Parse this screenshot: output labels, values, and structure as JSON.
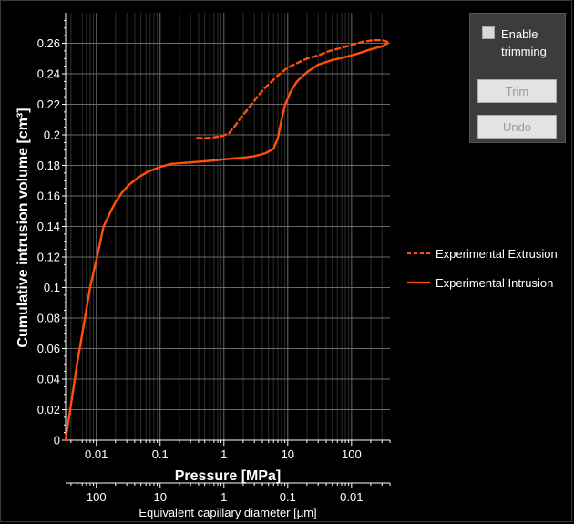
{
  "chart_data": {
    "type": "line",
    "xlabel": "Pressure [MPa]",
    "ylabel": "Cumulative intrusion volume [cm³]",
    "xscale": "log",
    "xlim": [
      0.0033,
      400
    ],
    "ylim": [
      0,
      0.28
    ],
    "x_ticks": [
      0.01,
      0.1,
      1,
      10,
      100
    ],
    "x_tick_labels": [
      "0.01",
      "0.1",
      "1",
      "10",
      "100"
    ],
    "y_ticks": [
      0,
      0.02,
      0.04,
      0.06,
      0.08,
      0.1,
      0.12,
      0.14,
      0.16,
      0.18,
      0.2,
      0.22,
      0.24,
      0.26
    ],
    "y_tick_labels": [
      "0",
      "0.02",
      "0.04",
      "0.06",
      "0.08",
      "0.1",
      "0.12",
      "0.14",
      "0.16",
      "0.18",
      "0.2",
      "0.22",
      "0.24",
      "0.26"
    ],
    "grid": true,
    "secondary_x_axis": {
      "label": "Equivalent capillary diameter [µm]",
      "ticks_at_pressure": [
        0.01,
        0.1,
        1,
        10,
        100
      ],
      "tick_labels": [
        "100",
        "10",
        "1",
        "0.1",
        "0.01"
      ]
    },
    "legend_position": "right",
    "series": [
      {
        "name": "Experimental Extrusion",
        "style": "dashed",
        "color": "#ff4f0a",
        "x": [
          0.38,
          0.55,
          0.9,
          1.2,
          1.5,
          1.9,
          2.5,
          3.2,
          4.2,
          5.6,
          7.5,
          10,
          14,
          20,
          30,
          45,
          70,
          100,
          150,
          220,
          300,
          360
        ],
        "y": [
          0.198,
          0.198,
          0.199,
          0.201,
          0.206,
          0.212,
          0.218,
          0.224,
          0.23,
          0.235,
          0.24,
          0.244,
          0.247,
          0.25,
          0.252,
          0.255,
          0.257,
          0.259,
          0.261,
          0.262,
          0.262,
          0.261
        ]
      },
      {
        "name": "Experimental Intrusion",
        "style": "solid",
        "color": "#ff4f0a",
        "x": [
          0.0033,
          0.005,
          0.008,
          0.0105,
          0.013,
          0.016,
          0.02,
          0.025,
          0.032,
          0.045,
          0.065,
          0.1,
          0.15,
          0.3,
          0.6,
          1,
          2,
          3,
          4.5,
          6,
          7,
          8,
          9,
          11,
          14,
          20,
          30,
          50,
          80,
          120,
          200,
          300,
          370
        ],
        "y": [
          0,
          0.05,
          0.1,
          0.122,
          0.14,
          0.148,
          0.156,
          0.162,
          0.167,
          0.172,
          0.176,
          0.179,
          0.181,
          0.182,
          0.183,
          0.184,
          0.185,
          0.186,
          0.188,
          0.191,
          0.198,
          0.21,
          0.219,
          0.228,
          0.235,
          0.241,
          0.246,
          0.249,
          0.251,
          0.253,
          0.256,
          0.258,
          0.26
        ]
      }
    ]
  },
  "trim_panel": {
    "checkbox_label": "Enable trimming",
    "checked": false,
    "trim_label": "Trim",
    "undo_label": "Undo"
  },
  "legend": {
    "items": [
      "Experimental Extrusion",
      "Experimental Intrusion"
    ]
  }
}
